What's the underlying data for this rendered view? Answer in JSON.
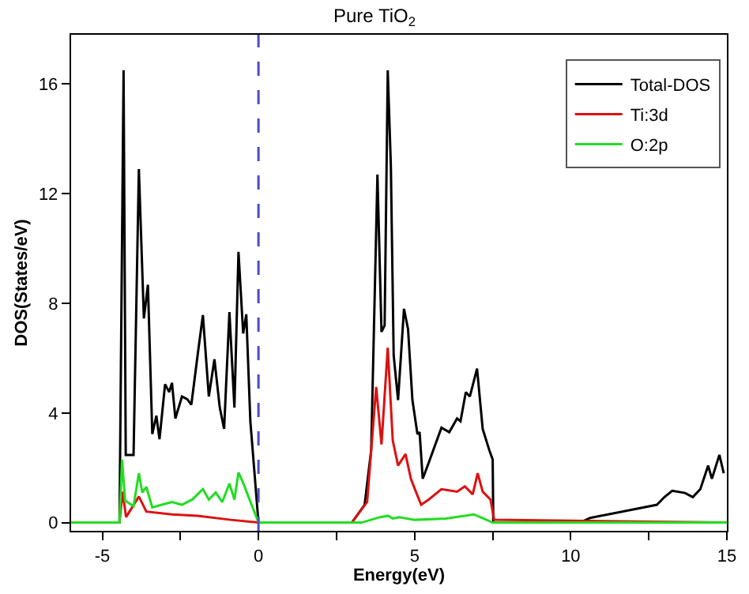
{
  "chart_data": {
    "type": "line",
    "title": "Pure TiO$_{2}$",
    "xlabel": "Energy(eV)",
    "ylabel": "DOS(States/eV)",
    "xlim": [
      -6,
      15
    ],
    "ylim": [
      -0.3,
      17.8
    ],
    "xticks": [
      -5,
      {
        "value": -2.5,
        "label": null
      },
      0,
      {
        "value": 2.5,
        "label": null
      },
      5,
      {
        "value": 7.5,
        "label": null
      },
      10,
      {
        "value": 12.5,
        "label": null
      },
      15
    ],
    "yticks": [
      0,
      4,
      8,
      12,
      16
    ],
    "legend": "top right",
    "marker": "none",
    "line_style": "solid",
    "ref_lines": [
      {
        "axis": "x",
        "value": 0,
        "color": "#4b4bc8",
        "line_style": "dashed"
      }
    ],
    "series": [
      {
        "name": "Total-DOS",
        "color": "#000000",
        "x": [
          -6,
          -4.45,
          -4.32,
          -4.25,
          -4.0,
          -3.83,
          -3.67,
          -3.54,
          -3.4,
          -3.27,
          -3.17,
          -2.99,
          -2.86,
          -2.77,
          -2.66,
          -2.45,
          -2.28,
          -2.15,
          -1.95,
          -1.78,
          -1.59,
          -1.41,
          -1.24,
          -1.1,
          -0.93,
          -0.77,
          -0.64,
          -0.49,
          -0.39,
          -0.26,
          0,
          2.99,
          3.4,
          3.61,
          3.81,
          3.94,
          4.04,
          4.14,
          4.24,
          4.33,
          4.47,
          4.66,
          4.79,
          4.93,
          5.09,
          5.16,
          5.26,
          5.45,
          5.86,
          6.11,
          6.36,
          6.47,
          6.64,
          6.77,
          7.0,
          7.18,
          7.39,
          7.5,
          7.52,
          10.3,
          10.62,
          12.76,
          13.0,
          13.25,
          13.66,
          13.91,
          14.15,
          14.4,
          14.52,
          14.76,
          14.9
        ],
        "values": [
          0,
          0,
          16.5,
          2.47,
          2.47,
          12.9,
          7.45,
          8.68,
          3.23,
          3.9,
          3.04,
          5.05,
          4.76,
          5.1,
          3.8,
          4.6,
          4.5,
          4.3,
          6.1,
          7.57,
          4.6,
          5.96,
          4.2,
          3.42,
          7.68,
          4.2,
          9.88,
          6.9,
          7.6,
          3.7,
          0,
          0,
          0.65,
          2.65,
          12.7,
          6.96,
          7.2,
          16.5,
          13.0,
          6.1,
          4.47,
          7.8,
          7.06,
          4.47,
          3.23,
          3.3,
          1.6,
          2.18,
          3.46,
          3.3,
          3.8,
          3.7,
          4.76,
          4.6,
          5.62,
          3.42,
          2.65,
          2.3,
          0,
          0,
          0.17,
          0.65,
          0.93,
          1.16,
          1.08,
          0.93,
          1.22,
          2.08,
          1.6,
          2.47,
          1.8
        ]
      },
      {
        "name": "Ti:3d",
        "color": "#dd1111",
        "x": [
          -6,
          -4.45,
          -4.35,
          -4.24,
          -3.83,
          -3.59,
          -2.77,
          -1.95,
          -0.88,
          0,
          2.99,
          3.48,
          3.77,
          3.94,
          4.14,
          4.3,
          4.47,
          4.71,
          4.88,
          5.04,
          5.21,
          5.45,
          5.86,
          6.36,
          6.61,
          6.86,
          7.02,
          7.18,
          7.43,
          7.55,
          15
        ],
        "values": [
          0,
          0,
          1.13,
          0.2,
          0.95,
          0.4,
          0.3,
          0.25,
          0.1,
          0,
          0,
          0.75,
          4.95,
          2.85,
          6.38,
          3.0,
          2.08,
          2.5,
          1.6,
          1.13,
          0.65,
          0.84,
          1.22,
          1.13,
          1.32,
          1.03,
          1.8,
          1.13,
          0.84,
          0.1,
          0
        ]
      },
      {
        "name": "O:2p",
        "color": "#22dd22",
        "x": [
          -6,
          -4.45,
          -4.37,
          -4.27,
          -4.0,
          -3.83,
          -3.72,
          -3.59,
          -3.4,
          -3.1,
          -2.77,
          -2.45,
          -2.12,
          -1.78,
          -1.59,
          -1.37,
          -1.16,
          -0.93,
          -0.77,
          -0.64,
          -0.48,
          -0.34,
          0,
          3.3,
          3.9,
          4.15,
          4.3,
          4.5,
          5.0,
          6.0,
          6.9,
          7.2,
          7.5,
          15
        ],
        "values": [
          0,
          0,
          2.3,
          0.8,
          0.6,
          1.8,
          1.1,
          1.3,
          0.55,
          0.65,
          0.75,
          0.65,
          0.84,
          1.22,
          0.84,
          1.1,
          0.75,
          1.42,
          0.84,
          1.83,
          1.42,
          1.0,
          0,
          0,
          0.2,
          0.25,
          0.15,
          0.2,
          0.1,
          0.15,
          0.3,
          0.15,
          0,
          0
        ]
      }
    ]
  }
}
